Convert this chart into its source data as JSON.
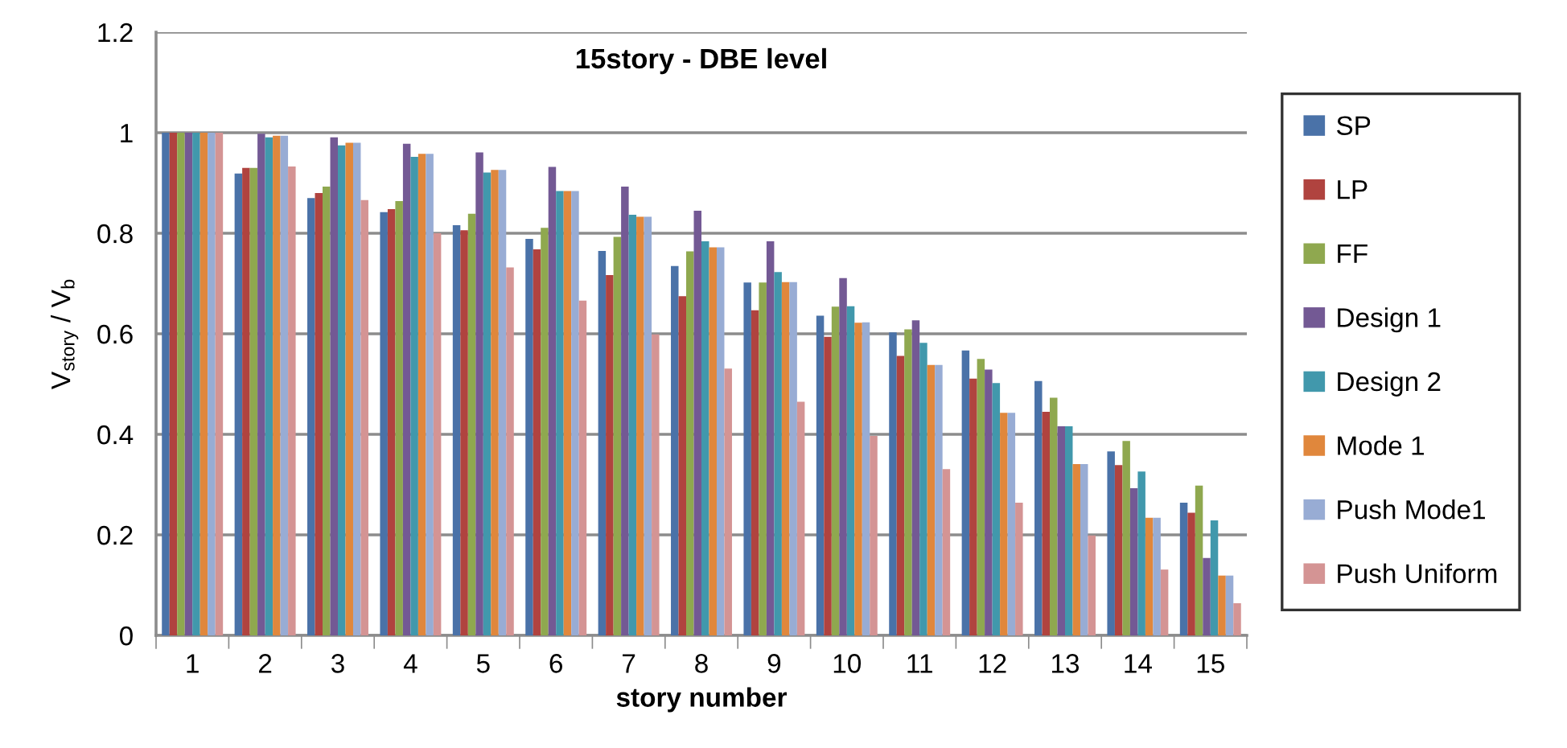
{
  "chart_data": {
    "type": "bar",
    "title": "15story - DBE level",
    "xlabel": "story number",
    "ylabel": "V$_{story}$ / V$_{b}$",
    "categories": [
      "1",
      "2",
      "3",
      "4",
      "5",
      "6",
      "7",
      "8",
      "9",
      "10",
      "11",
      "12",
      "13",
      "14",
      "15"
    ],
    "series": [
      {
        "name": "SP",
        "color": "#4a72a8",
        "values": [
          1,
          0.919,
          0.87,
          0.842,
          0.816,
          0.789,
          0.765,
          0.735,
          0.702,
          0.636,
          0.603,
          0.567,
          0.506,
          0.366,
          0.264
        ]
      },
      {
        "name": "LP",
        "color": "#b0433f",
        "values": [
          1,
          0.93,
          0.88,
          0.848,
          0.806,
          0.768,
          0.717,
          0.675,
          0.647,
          0.594,
          0.556,
          0.511,
          0.445,
          0.339,
          0.244
        ]
      },
      {
        "name": "FF",
        "color": "#8fa84f",
        "values": [
          1,
          0.93,
          0.893,
          0.864,
          0.839,
          0.811,
          0.793,
          0.764,
          0.702,
          0.654,
          0.609,
          0.55,
          0.473,
          0.387,
          0.298
        ]
      },
      {
        "name": "Design 1",
        "color": "#735994",
        "values": [
          1,
          0.998,
          0.991,
          0.978,
          0.961,
          0.932,
          0.893,
          0.845,
          0.784,
          0.711,
          0.627,
          0.529,
          0.416,
          0.293,
          0.154
        ]
      },
      {
        "name": "Design 2",
        "color": "#4198ac",
        "values": [
          1,
          0.991,
          0.975,
          0.952,
          0.921,
          0.884,
          0.837,
          0.784,
          0.723,
          0.655,
          0.582,
          0.502,
          0.416,
          0.326,
          0.229
        ]
      },
      {
        "name": "Mode 1",
        "color": "#e0873c",
        "values": [
          1,
          0.994,
          0.98,
          0.958,
          0.926,
          0.884,
          0.833,
          0.772,
          0.703,
          0.622,
          0.538,
          0.443,
          0.341,
          0.234,
          0.119
        ]
      },
      {
        "name": "Push Mode1",
        "color": "#98acd4",
        "values": [
          1,
          0.994,
          0.98,
          0.958,
          0.926,
          0.884,
          0.833,
          0.772,
          0.703,
          0.623,
          0.538,
          0.443,
          0.341,
          0.234,
          0.119
        ]
      },
      {
        "name": "Push Uniform",
        "color": "#d49494",
        "values": [
          1,
          0.933,
          0.866,
          0.8,
          0.732,
          0.666,
          0.599,
          0.531,
          0.465,
          0.397,
          0.331,
          0.264,
          0.199,
          0.131,
          0.064
        ]
      }
    ],
    "ylim": [
      0,
      1.2
    ],
    "yticks": [
      0,
      0.2,
      0.4,
      0.6,
      0.8,
      1,
      1.2
    ],
    "grid": "y",
    "legend": "right"
  }
}
